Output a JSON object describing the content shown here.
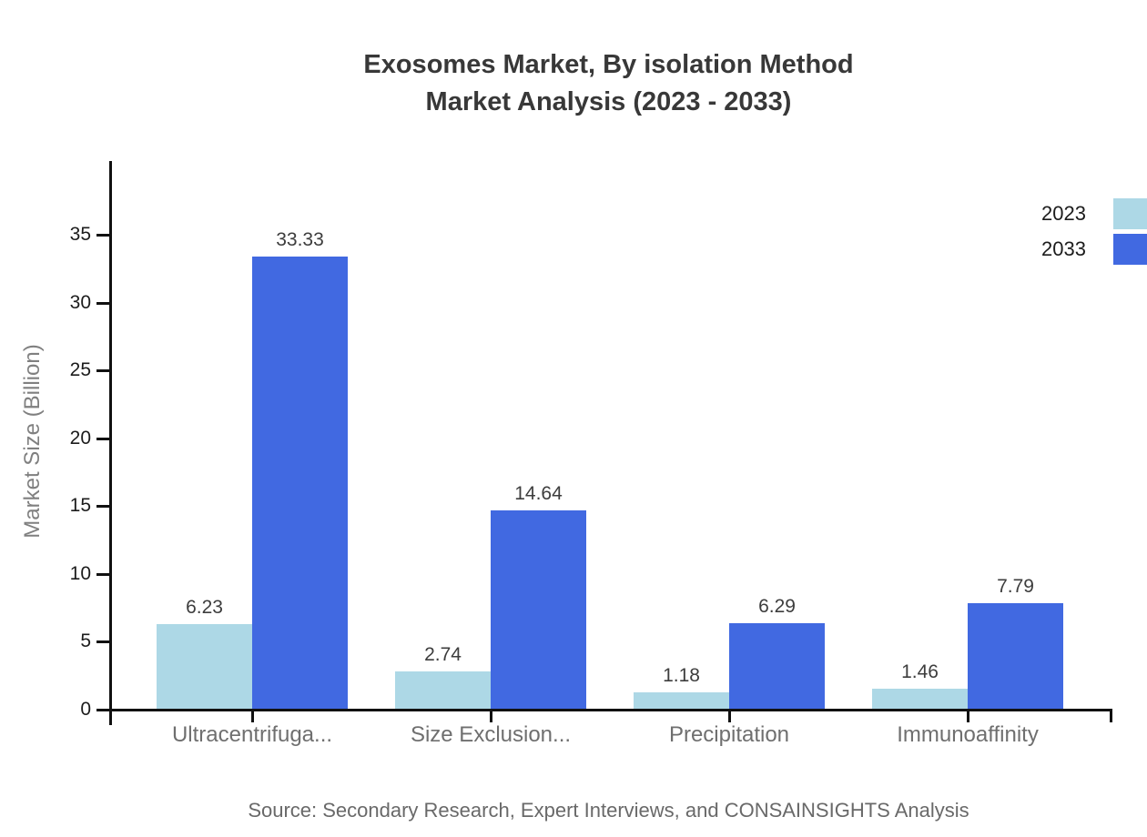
{
  "chart_data": {
    "type": "bar",
    "title_line1": "Exosomes Market, By isolation Method",
    "title_line2": "Market Analysis (2023 - 2033)",
    "ylabel": "Market Size (Billion)",
    "categories": [
      "Ultracentrifuga...",
      "Size Exclusion...",
      "Precipitation",
      "Immunoaffinity"
    ],
    "series": [
      {
        "name": "2023",
        "color": "#ADD8E6",
        "values": [
          6.23,
          2.74,
          1.18,
          1.46
        ]
      },
      {
        "name": "2033",
        "color": "#4169E1",
        "values": [
          33.33,
          14.64,
          6.29,
          7.79
        ]
      }
    ],
    "yticks": [
      0,
      5,
      10,
      15,
      20,
      25,
      30,
      35
    ],
    "ylim": [
      0,
      40.4
    ],
    "grid": false,
    "legend_position": "top-right",
    "value_label_decimals": 2,
    "source": "Source: Secondary Research, Expert Interviews, and CONSAINSIGHTS Analysis"
  },
  "colors": {
    "background": "#ffffff",
    "axis": "#111111",
    "title_text": "#383838",
    "value_label_text": "#3d3d3d",
    "category_text": "#6f6f6f",
    "source_text": "#696969"
  }
}
